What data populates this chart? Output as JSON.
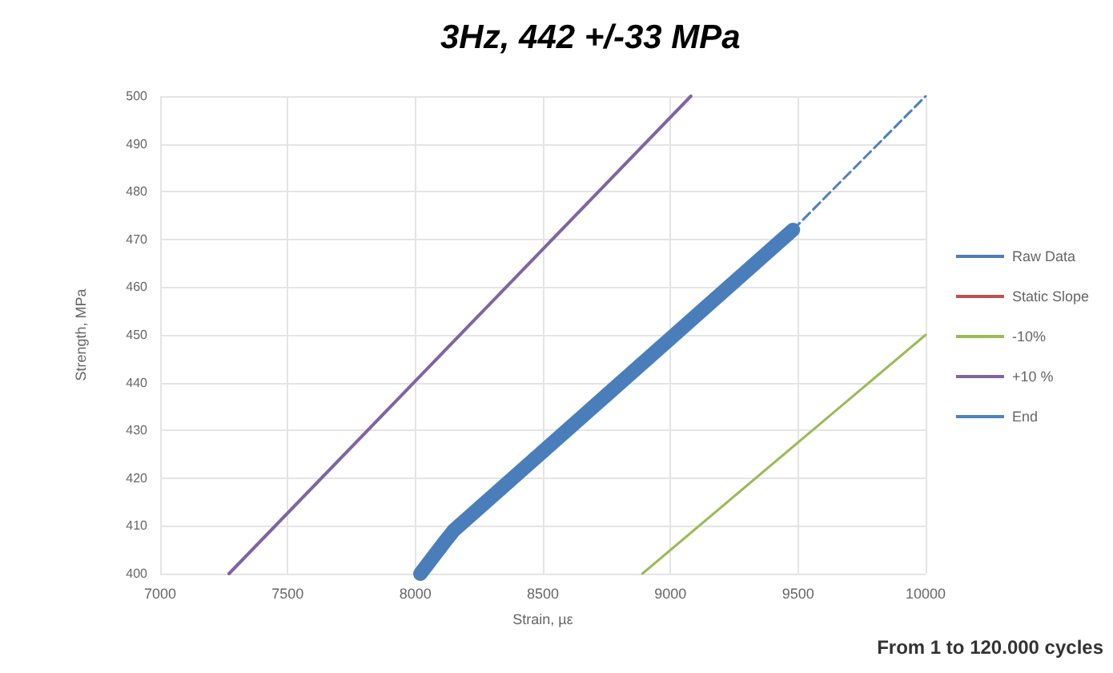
{
  "chart_data": {
    "type": "line",
    "title": "3Hz, 442 +/-33 MPa",
    "xlabel": "Strain, µε",
    "ylabel": "Strength, MPa",
    "annotations": [
      "From 1 to 120.000 cycles"
    ],
    "xlim": [
      7000,
      10000
    ],
    "xticks": [
      7000,
      7500,
      8000,
      8500,
      9000,
      9500,
      10000
    ],
    "ylim": [
      400,
      500
    ],
    "yticks": [
      400,
      410,
      420,
      430,
      440,
      450,
      460,
      470,
      480,
      490,
      500
    ],
    "grid": true,
    "legend": "right",
    "marker": "none",
    "series": [
      {
        "name": "Raw Data",
        "color": "#4a7ebb",
        "x": [
          8020,
          8120,
          8150,
          9480
        ],
        "values": [
          400,
          407,
          409,
          472
        ]
      },
      {
        "name": "Static Slope",
        "color": "#c0504d"
      },
      {
        "name": "-10%",
        "color": "#9bbb59",
        "x": [
          8890,
          10000
        ],
        "values": [
          400,
          450
        ]
      },
      {
        "name": "+10 %",
        "color": "#8064a2",
        "x": [
          7270,
          9080
        ],
        "values": [
          400,
          500
        ]
      },
      {
        "name": "End",
        "color": "#4f81bd",
        "line_style": "dashed",
        "x": [
          9480,
          10000
        ],
        "values": [
          472,
          500
        ]
      }
    ]
  }
}
